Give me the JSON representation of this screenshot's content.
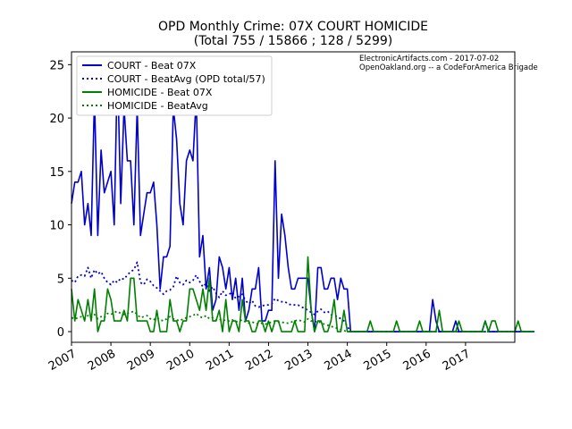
{
  "chart_data": {
    "type": "line",
    "title": "OPD Monthly Crime: 07X COURT HOMICIDE",
    "subtitle": "(Total 755 / 15866 ; 128 / 5299)",
    "xlabel": "",
    "ylabel": "",
    "xlim": [
      "2007-01",
      "2018-04"
    ],
    "ylim": [
      -1,
      26.2
    ],
    "yticks": [
      0,
      5,
      10,
      15,
      20,
      25
    ],
    "xticks": [
      "2007",
      "2008",
      "2009",
      "2010",
      "2011",
      "2012",
      "2013",
      "2014",
      "2015",
      "2016",
      "2017"
    ],
    "legend_position": "top-left",
    "annotations": [
      "ElectronicArtifacts.com - 2017-07-02",
      "OpenOakland.org -- a CodeForAmerica Brigade"
    ],
    "x_start": "2007-01",
    "x_step": "month",
    "series": [
      {
        "name": "COURT - Beat 07X",
        "color": "#0000cc",
        "style": "solid",
        "values": [
          12,
          14,
          14,
          15,
          10,
          12,
          9,
          22,
          9,
          17,
          13,
          14,
          15,
          10,
          25,
          12,
          21,
          16,
          16,
          10,
          21,
          9,
          11,
          13,
          13,
          14,
          10,
          4,
          7,
          7,
          8,
          21,
          18,
          12,
          10,
          16,
          17,
          16,
          22,
          7,
          9,
          4,
          6,
          2,
          3,
          7,
          6,
          4,
          6,
          3,
          5,
          2,
          5,
          1,
          2,
          4,
          4,
          6,
          1,
          1,
          2,
          2,
          16,
          5,
          11,
          9,
          6,
          4,
          4,
          5,
          5,
          5,
          5,
          2,
          0,
          6,
          6,
          4,
          4,
          5,
          5,
          3,
          5,
          4,
          4,
          0,
          0,
          0,
          0,
          0,
          0,
          0,
          0,
          0,
          0,
          0,
          0,
          0,
          0,
          0,
          0,
          0,
          0,
          0,
          0,
          0,
          0,
          0,
          0,
          0,
          3,
          1,
          0,
          0,
          0,
          0,
          0,
          1,
          0,
          0,
          0,
          0,
          0,
          0,
          0,
          0,
          1,
          0,
          0,
          0,
          0,
          0,
          0,
          0,
          0,
          0,
          0,
          0,
          0,
          0,
          0,
          0
        ]
      },
      {
        "name": "COURT - BeatAvg (OPD total/57)",
        "color": "#0000cc",
        "style": "dotted",
        "values": [
          4.8,
          4.6,
          5.2,
          5.3,
          5.2,
          6,
          5,
          5.8,
          5.4,
          5.6,
          5,
          4.6,
          4.4,
          4.8,
          4.6,
          5,
          4.9,
          5.3,
          5.6,
          5.8,
          6.5,
          4.6,
          4.4,
          4.9,
          4.7,
          4.3,
          4.1,
          3.8,
          3.5,
          3.8,
          3.9,
          4.2,
          5.2,
          4.6,
          4.4,
          4.8,
          4.6,
          4.8,
          5.3,
          4.7,
          4.2,
          4.5,
          3.8,
          4.2,
          3.6,
          3.2,
          3.8,
          3.4,
          3.5,
          3.7,
          3.1,
          3.3,
          3.5,
          2.9,
          2.6,
          2.9,
          2.4,
          2.3,
          2.4,
          2.5,
          2.5,
          2.6,
          3.1,
          2.9,
          2.8,
          2.8,
          2.6,
          2.5,
          2.5,
          2.5,
          2.3,
          2.2,
          2,
          1.8,
          1.6,
          1.9,
          2.1,
          1.8,
          1.9,
          1.6,
          1.5,
          1.4,
          1.2,
          1,
          0.5,
          0,
          0,
          0,
          0,
          0,
          0,
          0,
          0,
          0,
          0,
          0,
          0,
          0,
          0,
          0,
          0,
          0,
          0,
          0,
          0,
          0,
          0,
          0,
          0,
          0,
          0,
          0,
          0,
          0,
          0,
          0,
          0,
          0,
          0,
          0,
          0,
          0,
          0,
          0,
          0,
          0,
          0,
          0,
          0,
          0,
          0,
          0,
          0,
          0,
          0,
          0,
          0,
          0,
          0,
          0,
          0,
          0
        ]
      },
      {
        "name": "HOMICIDE - Beat 07X",
        "color": "#008000",
        "style": "solid",
        "values": [
          4,
          1,
          3,
          2,
          1,
          3,
          1,
          4,
          0,
          1,
          1,
          4,
          3,
          1,
          1,
          1,
          2,
          1,
          5,
          5,
          1,
          1,
          1,
          1,
          0,
          0,
          2,
          0,
          0,
          0,
          3,
          1,
          1,
          0,
          1,
          1,
          4,
          4,
          3,
          2,
          4,
          2,
          5,
          1,
          1,
          2,
          0,
          3,
          0,
          1,
          1,
          0,
          3,
          1,
          1,
          0,
          0,
          1,
          1,
          0,
          1,
          0,
          1,
          1,
          0,
          0,
          0,
          0,
          1,
          0,
          0,
          0,
          7,
          2,
          0,
          1,
          1,
          0,
          0,
          1,
          3,
          0,
          0,
          2,
          0,
          0,
          0,
          0,
          0,
          0,
          0,
          1,
          0,
          0,
          0,
          0,
          0,
          0,
          0,
          1,
          0,
          0,
          0,
          0,
          0,
          0,
          1,
          0,
          0,
          0,
          0,
          0,
          2,
          0,
          0,
          0,
          0,
          0,
          1,
          0,
          0,
          0,
          0,
          0,
          0,
          0,
          1,
          0,
          1,
          1,
          0,
          0,
          0,
          0,
          0,
          0,
          1,
          0,
          0,
          0,
          0,
          0
        ]
      },
      {
        "name": "HOMICIDE - BeatAvg",
        "color": "#008000",
        "style": "dotted",
        "values": [
          1.3,
          1.2,
          1.3,
          1.4,
          1.2,
          1.5,
          1.3,
          1.6,
          1.2,
          1.4,
          1.3,
          1.7,
          1.6,
          1.8,
          1.9,
          1.7,
          1.6,
          1.7,
          1.8,
          1.9,
          1.6,
          1.3,
          1.4,
          1.5,
          1.2,
          1.1,
          1.3,
          1.1,
          1,
          1.2,
          1.4,
          1.2,
          1.1,
          1,
          1.2,
          1.3,
          1.4,
          1.5,
          1.7,
          1.4,
          1.3,
          1.5,
          1.2,
          1.3,
          1.1,
          1.2,
          1,
          1.1,
          1,
          1.1,
          0.9,
          1,
          1.1,
          0.9,
          0.8,
          0.9,
          0.8,
          0.7,
          0.8,
          0.7,
          0.8,
          0.9,
          1,
          0.9,
          0.9,
          0.8,
          0.8,
          0.9,
          1,
          1.1,
          1,
          0.9,
          1.2,
          1,
          0.9,
          1,
          0.8,
          0.7,
          0.6,
          0.5,
          0.4,
          0.3,
          0.2,
          0.1,
          0,
          0,
          0,
          0,
          0,
          0,
          0,
          0,
          0,
          0,
          0,
          0,
          0,
          0,
          0,
          0,
          0,
          0,
          0,
          0,
          0,
          0,
          0,
          0,
          0,
          0,
          0,
          0,
          0,
          0,
          0,
          0,
          0,
          0,
          0,
          0,
          0,
          0,
          0,
          0,
          0,
          0,
          0,
          0,
          0,
          0,
          0,
          0,
          0,
          0,
          0,
          0,
          0,
          0,
          0,
          0,
          0,
          0
        ]
      }
    ]
  }
}
